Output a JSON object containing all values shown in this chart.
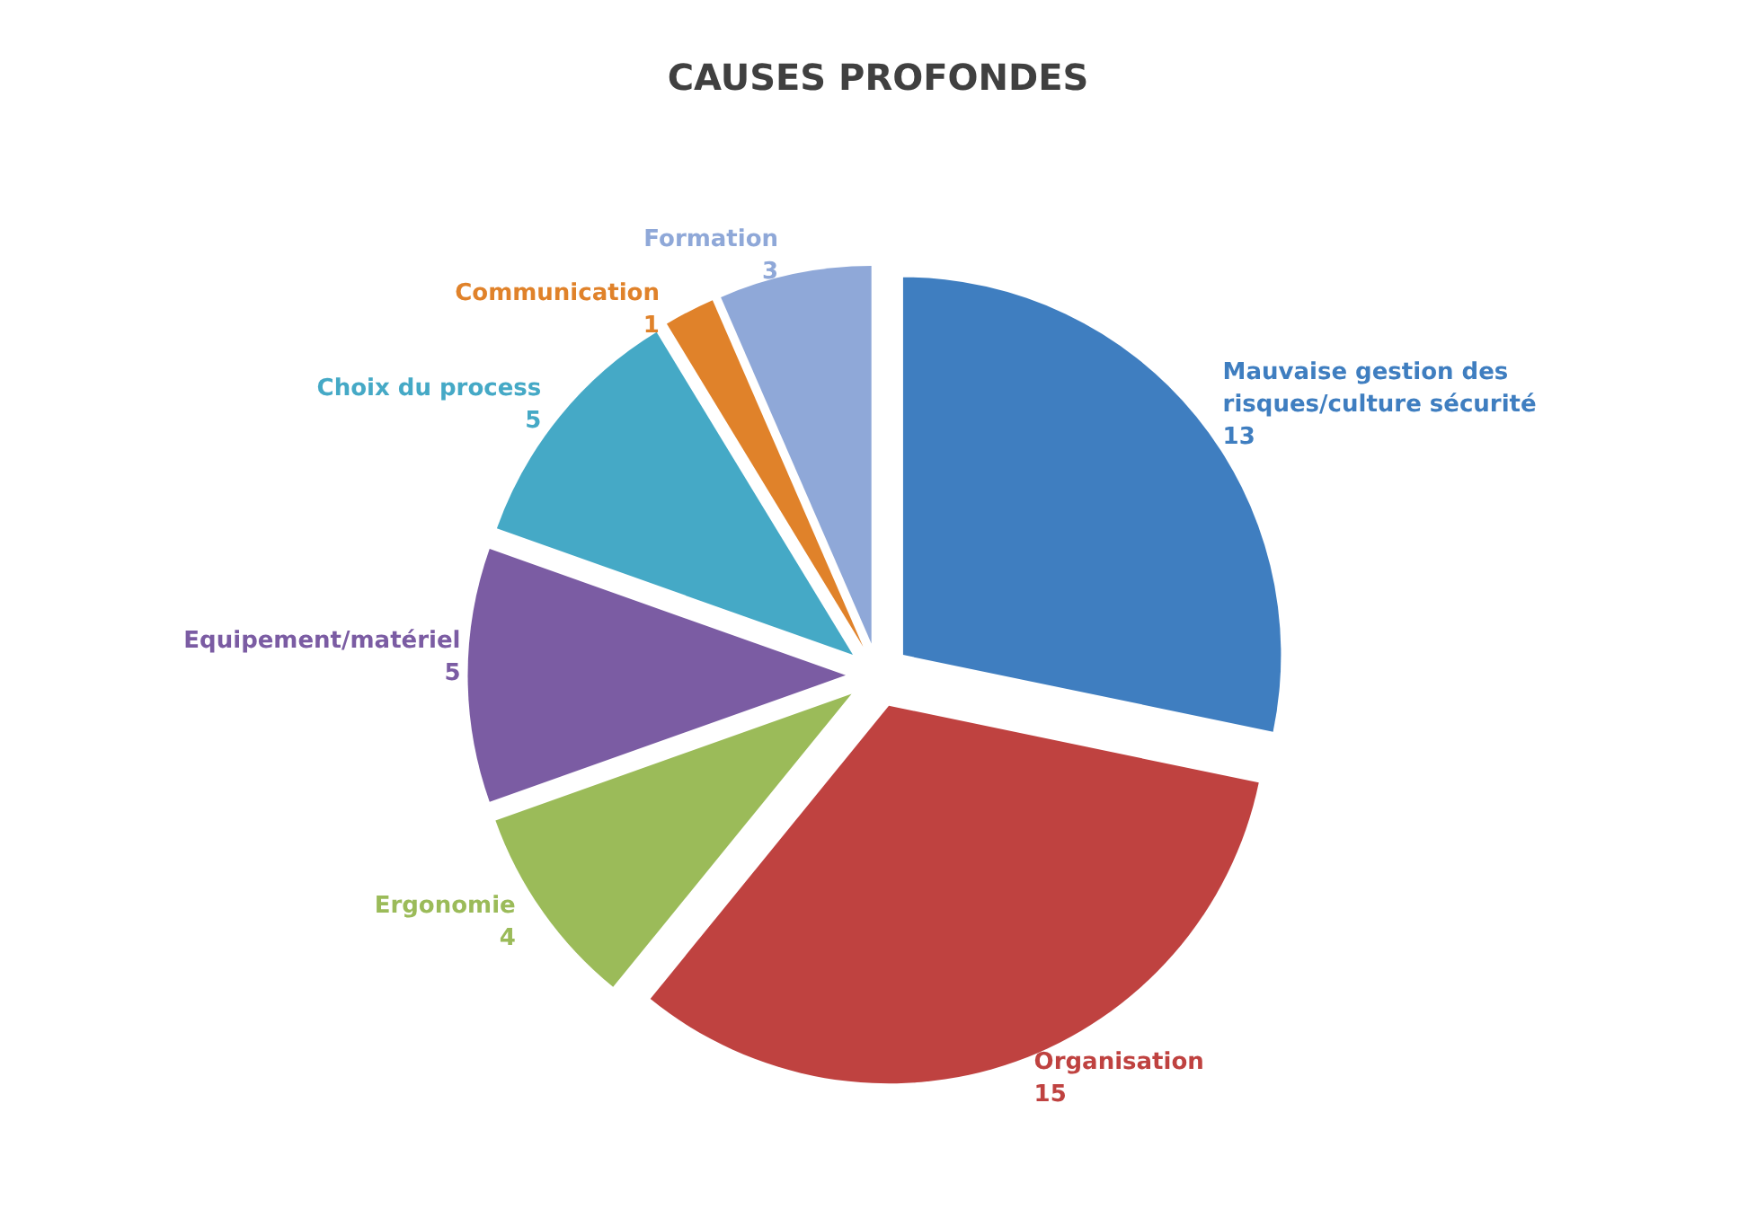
{
  "chart_data": {
    "type": "pie",
    "title": "CAUSES PROFONDES",
    "categories": [
      "Mauvaise gestion des risques/culture sécurité",
      "Organisation",
      "Ergonomie",
      "Equipement/matériel",
      "Choix du process",
      "Communication",
      "Formation"
    ],
    "values": [
      13,
      15,
      4,
      5,
      5,
      1,
      3
    ],
    "colors": [
      "#3f7ec0",
      "#bf4240",
      "#9bbb59",
      "#7b5ca3",
      "#45a9c6",
      "#e0822a",
      "#8fa8d8"
    ],
    "data_labels": true,
    "legend": false
  }
}
